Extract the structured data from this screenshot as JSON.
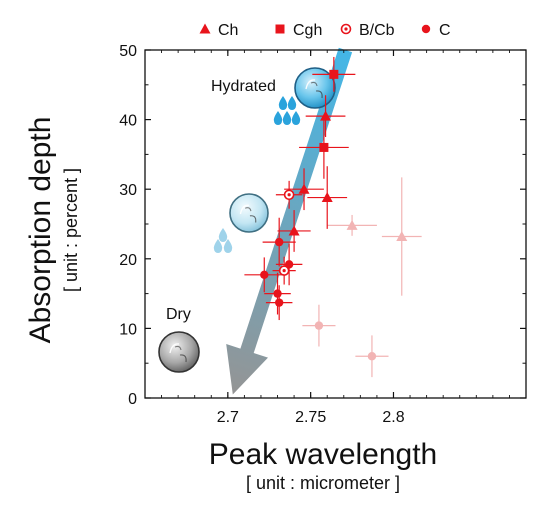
{
  "chart_data": {
    "type": "scatter",
    "xlabel": "Peak wavelength",
    "xunit": "[ unit : micrometer ]",
    "ylabel": "Absorption depth",
    "yunit": "[ unit : percent ]",
    "xlim": [
      2.65,
      2.88
    ],
    "ylim": [
      0,
      50
    ],
    "xticks": [
      "2.7",
      "2.75",
      "2.8"
    ],
    "yticks": [
      "0",
      "10",
      "20",
      "30",
      "40",
      "50"
    ],
    "grid": false,
    "legend_position": "top",
    "legend": [
      {
        "label": "Ch",
        "marker": "triangle"
      },
      {
        "label": "Cgh",
        "marker": "square"
      },
      {
        "label": "B/Cb",
        "marker": "open-circle"
      },
      {
        "label": "C",
        "marker": "circle"
      }
    ],
    "annotations": {
      "hydrated": "Hydrated",
      "dry": "Dry"
    },
    "series": [
      {
        "name": "Ch",
        "marker": "triangle",
        "color": "#e8141c",
        "points": [
          {
            "x": 2.759,
            "y": 40.5,
            "xerr": 0.012,
            "yerr": 3.0
          },
          {
            "x": 2.746,
            "y": 30.0,
            "xerr": 0.012,
            "yerr": 3.0
          },
          {
            "x": 2.76,
            "y": 28.8,
            "xerr": 0.012,
            "yerr": 4.5
          },
          {
            "x": 2.74,
            "y": 24.0,
            "xerr": 0.01,
            "yerr": 3.0
          }
        ]
      },
      {
        "name": "Cgh",
        "marker": "square",
        "color": "#e8141c",
        "points": [
          {
            "x": 2.764,
            "y": 46.5,
            "xerr": 0.013,
            "yerr": 2.5
          },
          {
            "x": 2.758,
            "y": 36.0,
            "xerr": 0.015,
            "yerr": 4.5
          }
        ]
      },
      {
        "name": "B/Cb",
        "marker": "open-circle",
        "color": "#e8141c",
        "points": [
          {
            "x": 2.737,
            "y": 29.2,
            "xerr": 0.008,
            "yerr": 2.0
          },
          {
            "x": 2.734,
            "y": 18.3,
            "xerr": 0.007,
            "yerr": 2.0
          }
        ]
      },
      {
        "name": "C",
        "marker": "circle",
        "color": "#e8141c",
        "points": [
          {
            "x": 2.731,
            "y": 22.4,
            "xerr": 0.01,
            "yerr": 3.5
          },
          {
            "x": 2.737,
            "y": 19.2,
            "xerr": 0.008,
            "yerr": 3.0
          },
          {
            "x": 2.722,
            "y": 17.7,
            "xerr": 0.012,
            "yerr": 2.5
          },
          {
            "x": 2.73,
            "y": 15.0,
            "xerr": 0.008,
            "yerr": 3.0
          },
          {
            "x": 2.731,
            "y": 13.7,
            "xerr": 0.008,
            "yerr": 2.5
          }
        ]
      },
      {
        "name": "",
        "marker": "mixed-faint",
        "color": "#f2b4b4",
        "points": [
          {
            "x": 2.775,
            "y": 24.8,
            "xerr": 0.015,
            "yerr": 1.5,
            "marker": "triangle"
          },
          {
            "x": 2.805,
            "y": 23.2,
            "xerr": 0.012,
            "yerr": 8.5,
            "marker": "triangle"
          },
          {
            "x": 2.755,
            "y": 10.4,
            "xerr": 0.01,
            "yerr": 3.0,
            "marker": "circle"
          },
          {
            "x": 2.787,
            "y": 6.0,
            "xerr": 0.01,
            "yerr": 3.0,
            "marker": "circle"
          }
        ]
      }
    ],
    "trend_arrow": {
      "from": {
        "x": 2.771,
        "y": 50.0
      },
      "to": {
        "x": 2.703,
        "y": 0.5
      },
      "color_start": "#39b3e6",
      "color_end": "#8f8f8f"
    }
  }
}
